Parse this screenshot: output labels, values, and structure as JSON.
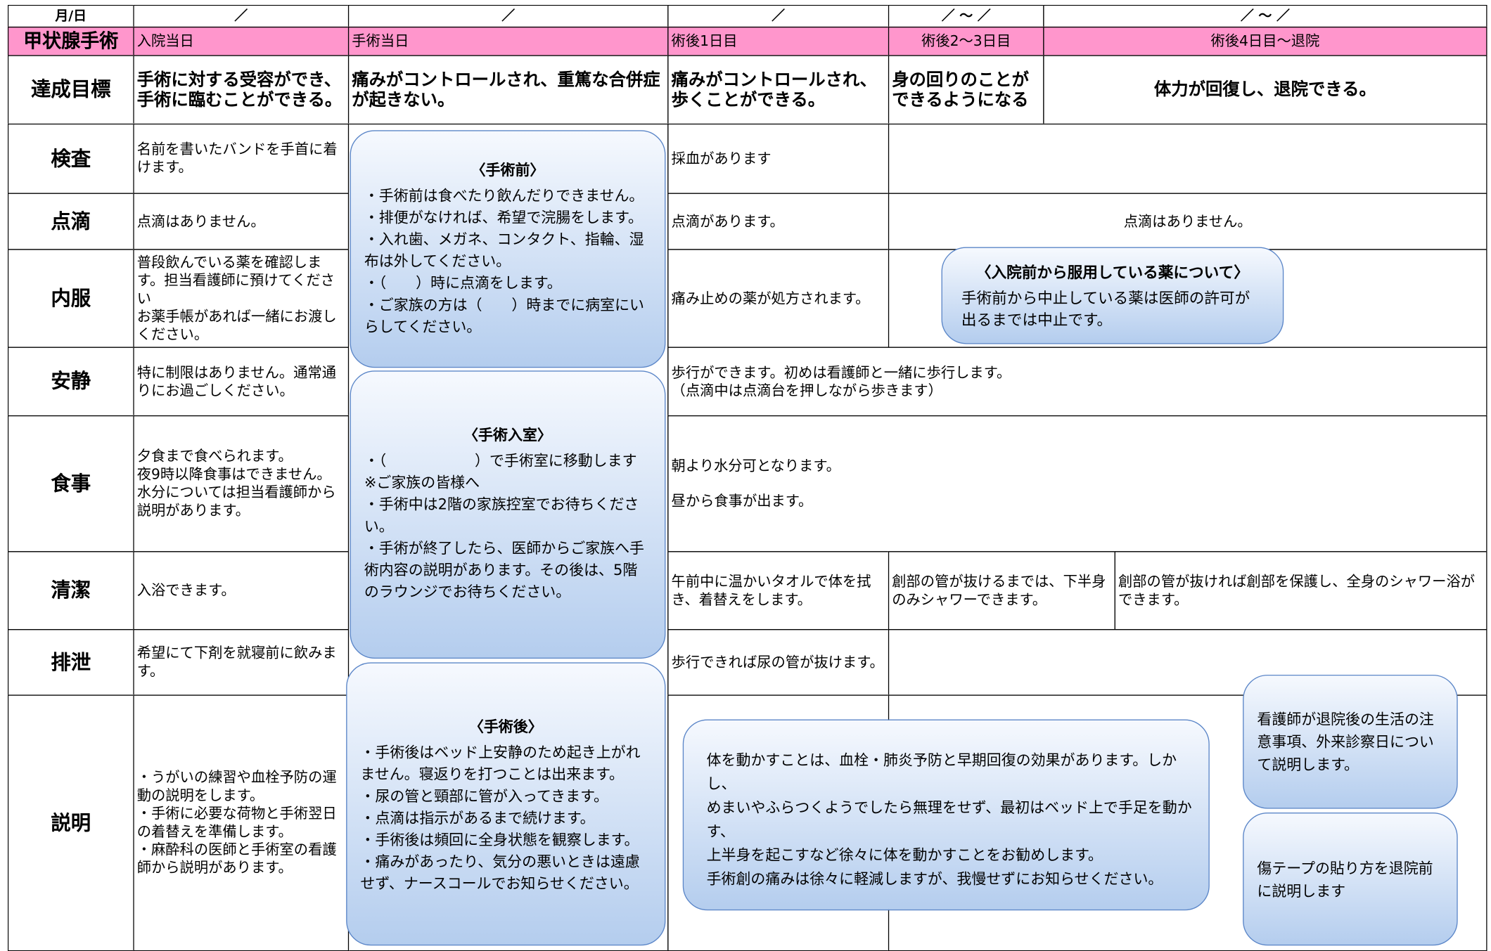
{
  "header": {
    "date_label": "月/日",
    "dates": [
      "／",
      "／",
      "／",
      "／ ～ ／",
      "／ ～ ／"
    ],
    "title": "甲状腺手術",
    "days": [
      "入院当日",
      "手術当日",
      "術後1日目",
      "術後2～3日目",
      "術後4日目～退院"
    ]
  },
  "goals": {
    "label": "達成目標",
    "items": [
      "手術に対する受容ができ、手術に臨むことができる。",
      "痛みがコントロールされ、重篤な合併症が起きない。",
      "痛みがコントロールされ、歩くことができる。",
      "身の回りのことができるようになる",
      "体力が回復し、退院できる。"
    ]
  },
  "rows": [
    {
      "label": "検査",
      "admission": "名前を書いたバンドを手首に着けます。",
      "post_op_day1": "採血があります"
    },
    {
      "label": "点滴",
      "admission": "点滴はありません。",
      "post_op_day1": "点滴があります。",
      "post_op_day2_to_discharge": "点滴はありません。"
    },
    {
      "label": "内服",
      "admission": [
        "普段飲んでいる薬を確認します。担当看護師に預けてください",
        "お薬手帳があれば一緒にお渡しください。"
      ],
      "post_op_day1": "痛み止めの薬が処方されます。"
    },
    {
      "label": "安静",
      "admission": "特に制限はありません。通常通りにお過ごしください。",
      "post_op_day1_to_discharge": [
        "歩行ができます。初めは看護師と一緒に歩行します。",
        "（点滴中は点滴台を押しながら歩きます）"
      ]
    },
    {
      "label": "食事",
      "admission": [
        "夕食まで食べられます。",
        "夜9時以降食事はできません。",
        "水分については担当看護師から説明があります。"
      ],
      "post_op_day1": [
        "朝より水分可となります。",
        "昼から食事が出ます。"
      ]
    },
    {
      "label": "清潔",
      "admission": "入浴できます。",
      "post_op_day1": "午前中に温かいタオルで体を拭き、着替えをします。",
      "post_op_day2_3": "創部の管が抜けるまでは、下半身のみシャワーできます。",
      "post_op_day4_discharge": "創部の管が抜ければ創部を保護し、全身のシャワー浴ができます。"
    },
    {
      "label": "排泄",
      "admission": "希望にて下剤を就寝前に飲みます。",
      "post_op_day1": "歩行できれば尿の管が抜けます。"
    },
    {
      "label": "説明",
      "admission": [
        "・うがいの練習や血栓予防の運動の説明をします。",
        "・手術に必要な荷物と手術翌日の着替えを準備します。",
        "・麻酔科の医師と手術室の看護師から説明があります。"
      ]
    }
  ],
  "surgery_day_notes": [
    {
      "title": "〈手術前〉",
      "lines": [
        "・手術前は食べたり飲んだりできません。",
        "・排便がなければ、希望で浣腸をします。",
        "・入れ歯、メガネ、コンタクト、指輪、湿布は外してください。",
        "・（　　）時に点滴をします。",
        "・ご家族の方は（　　）時までに病室にいらしてください。"
      ]
    },
    {
      "title": "〈手術入室〉",
      "lines": [
        "・（　　　　　　）で手術室に移動します",
        "※ご家族の皆様へ",
        "・手術中は2階の家族控室でお待ちください。",
        "・手術が終了したら、医師からご家族へ手術内容の説明があります。その後は、5階のラウンジでお待ちください。"
      ]
    },
    {
      "title": "〈手術後〉",
      "lines": [
        "・手術後はベッド上安静のため起き上がれません。寝返りを打つことは出来ます。",
        "・尿の管と頸部に管が入ってきます。",
        "・点滴は指示があるまで続けます。",
        "・手術後は頻回に全身状態を観察します。",
        "・痛みがあったり、気分の悪いときは遠慮せず、ナースコールでお知らせください。"
      ]
    }
  ],
  "medication_note": {
    "title": "〈入院前から服用している薬について〉",
    "lines": [
      "手術前から中止している薬は医師の許可が出るまでは中止です。"
    ]
  },
  "activity_note": {
    "lines": [
      "体を動かすことは、血栓・肺炎予防と早期回復の効果があります。しかし、",
      "めまいやふらつくようでしたら無理をせず、最初はベッド上で手足を動かす、",
      "上半身を起こすなど徐々に体を動かすことをお勧めします。",
      "手術創の痛みは徐々に軽減しますが、我慢せずにお知らせください。"
    ]
  },
  "discharge_notes": [
    {
      "lines": [
        "看護師が退院後の生活の注意事項、外来診察日について説明します。"
      ]
    },
    {
      "lines": [
        "傷テープの貼り方を退院前に説明します"
      ]
    }
  ]
}
